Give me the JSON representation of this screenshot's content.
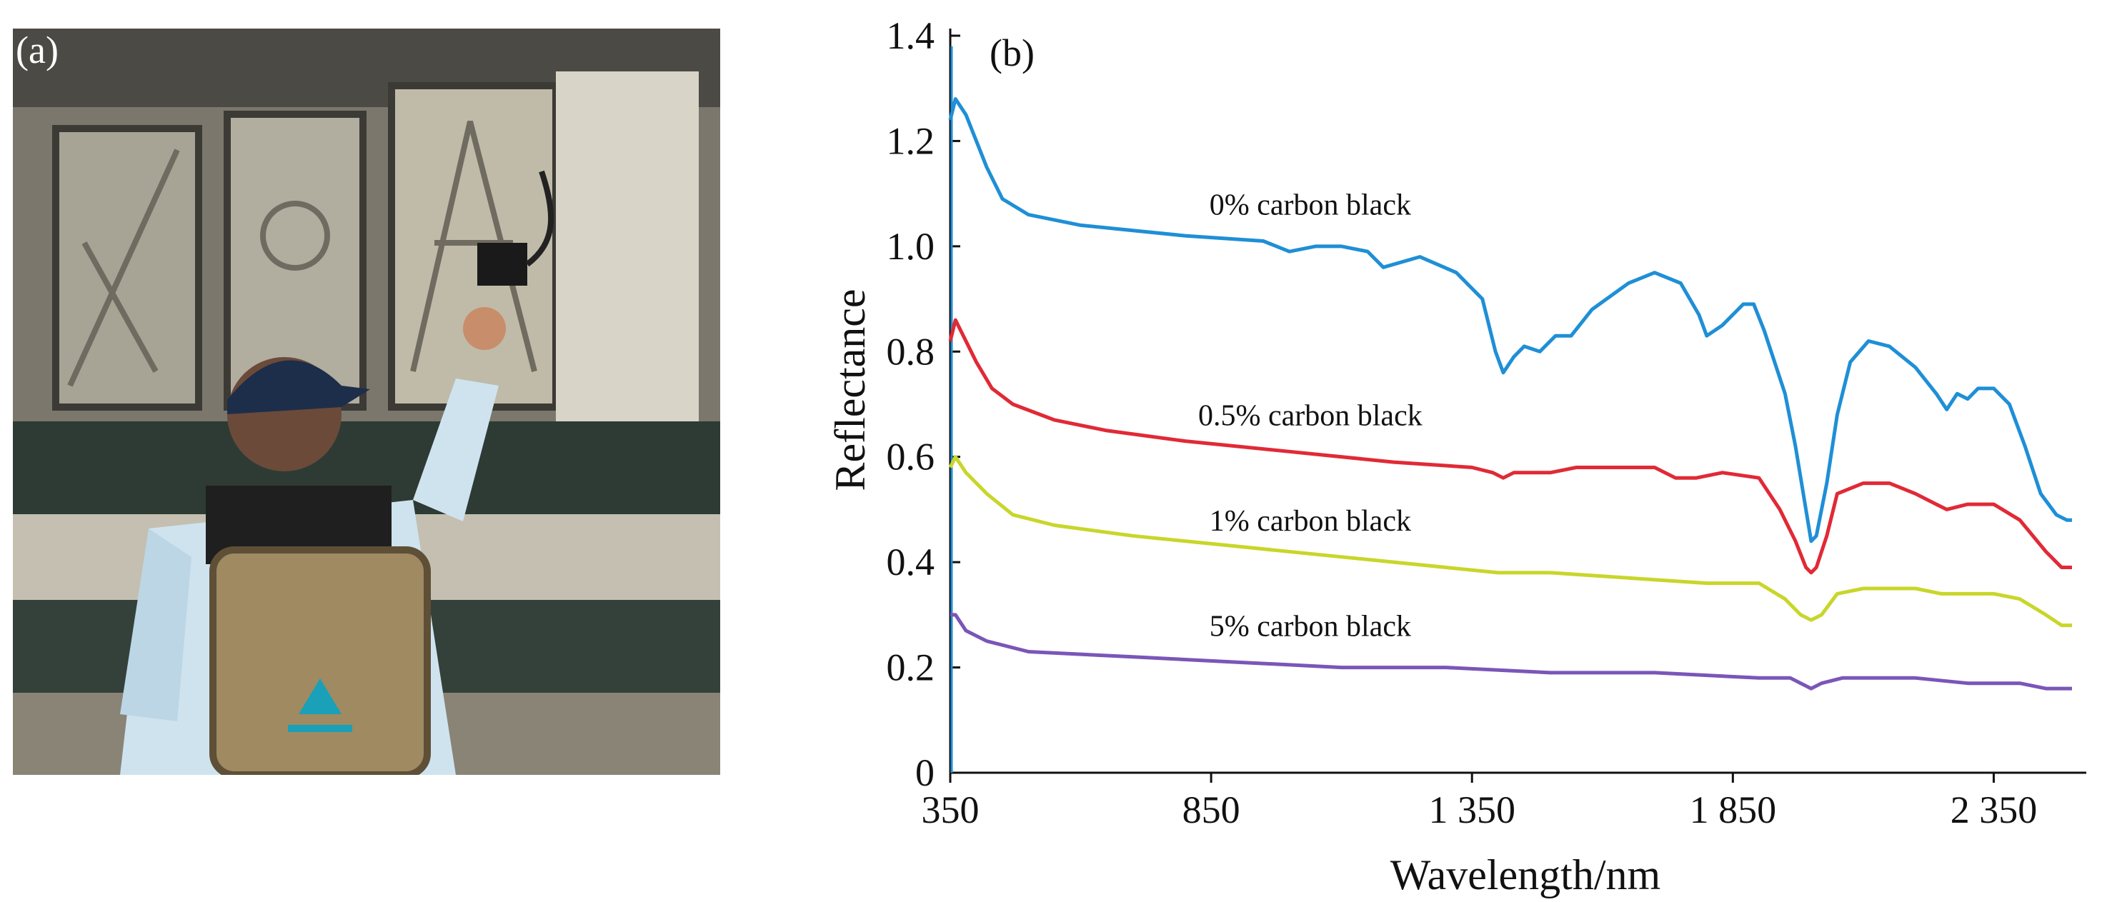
{
  "panel_a": {
    "tag": "(a)",
    "colors": {
      "wall": "#9e9a8e",
      "shadow": "#2e3a33",
      "shirt": "#cfe3ef",
      "cap": "#1d2e4a",
      "backpack": "#a08a62",
      "logo": "#1aa0b8"
    }
  },
  "chart_data": {
    "type": "line",
    "panel_tag": "(b)",
    "xlabel": "Wavelength/nm",
    "ylabel": "Reflectance",
    "xlim": [
      350,
      2500
    ],
    "ylim": [
      0,
      1.4
    ],
    "x_ticks": [
      350,
      850,
      1350,
      1850,
      2350
    ],
    "x_tick_labels": [
      "350",
      "850",
      "1 350",
      "1 850",
      "2 350"
    ],
    "y_ticks": [
      0,
      0.2,
      0.4,
      0.6,
      0.8,
      1.0,
      1.2,
      1.4
    ],
    "y_tick_labels": [
      "0",
      "0.2",
      "0.4",
      "0.6",
      "0.8",
      "1.0",
      "1.2",
      "1.4"
    ],
    "grid": false,
    "series": [
      {
        "name": "0% carbon black",
        "color": "#1f8fd6",
        "points": [
          [
            350,
            1.24
          ],
          [
            360,
            1.28
          ],
          [
            380,
            1.25
          ],
          [
            400,
            1.2
          ],
          [
            420,
            1.15
          ],
          [
            450,
            1.09
          ],
          [
            500,
            1.06
          ],
          [
            600,
            1.04
          ],
          [
            800,
            1.02
          ],
          [
            950,
            1.01
          ],
          [
            1000,
            0.99
          ],
          [
            1050,
            1.0
          ],
          [
            1100,
            1.0
          ],
          [
            1150,
            0.99
          ],
          [
            1180,
            0.96
          ],
          [
            1250,
            0.98
          ],
          [
            1320,
            0.95
          ],
          [
            1370,
            0.9
          ],
          [
            1395,
            0.8
          ],
          [
            1410,
            0.76
          ],
          [
            1430,
            0.79
          ],
          [
            1450,
            0.81
          ],
          [
            1480,
            0.8
          ],
          [
            1510,
            0.83
          ],
          [
            1540,
            0.83
          ],
          [
            1580,
            0.88
          ],
          [
            1650,
            0.93
          ],
          [
            1700,
            0.95
          ],
          [
            1750,
            0.93
          ],
          [
            1785,
            0.87
          ],
          [
            1800,
            0.83
          ],
          [
            1830,
            0.85
          ],
          [
            1870,
            0.89
          ],
          [
            1890,
            0.89
          ],
          [
            1910,
            0.84
          ],
          [
            1950,
            0.72
          ],
          [
            1970,
            0.62
          ],
          [
            1990,
            0.5
          ],
          [
            2000,
            0.44
          ],
          [
            2010,
            0.45
          ],
          [
            2030,
            0.55
          ],
          [
            2050,
            0.68
          ],
          [
            2075,
            0.78
          ],
          [
            2110,
            0.82
          ],
          [
            2150,
            0.81
          ],
          [
            2200,
            0.77
          ],
          [
            2240,
            0.72
          ],
          [
            2260,
            0.69
          ],
          [
            2280,
            0.72
          ],
          [
            2300,
            0.71
          ],
          [
            2320,
            0.73
          ],
          [
            2350,
            0.73
          ],
          [
            2380,
            0.7
          ],
          [
            2410,
            0.62
          ],
          [
            2440,
            0.53
          ],
          [
            2470,
            0.49
          ],
          [
            2490,
            0.48
          ],
          [
            2500,
            0.48
          ]
        ]
      },
      {
        "name": "0.5% carbon black",
        "color": "#e02a36",
        "points": [
          [
            350,
            0.82
          ],
          [
            360,
            0.86
          ],
          [
            380,
            0.82
          ],
          [
            400,
            0.78
          ],
          [
            430,
            0.73
          ],
          [
            470,
            0.7
          ],
          [
            550,
            0.67
          ],
          [
            650,
            0.65
          ],
          [
            800,
            0.63
          ],
          [
            1000,
            0.61
          ],
          [
            1200,
            0.59
          ],
          [
            1350,
            0.58
          ],
          [
            1390,
            0.57
          ],
          [
            1410,
            0.56
          ],
          [
            1430,
            0.57
          ],
          [
            1500,
            0.57
          ],
          [
            1550,
            0.58
          ],
          [
            1650,
            0.58
          ],
          [
            1700,
            0.58
          ],
          [
            1740,
            0.56
          ],
          [
            1780,
            0.56
          ],
          [
            1830,
            0.57
          ],
          [
            1900,
            0.56
          ],
          [
            1940,
            0.5
          ],
          [
            1970,
            0.44
          ],
          [
            1990,
            0.39
          ],
          [
            2000,
            0.38
          ],
          [
            2010,
            0.39
          ],
          [
            2030,
            0.45
          ],
          [
            2050,
            0.53
          ],
          [
            2100,
            0.55
          ],
          [
            2150,
            0.55
          ],
          [
            2200,
            0.53
          ],
          [
            2240,
            0.51
          ],
          [
            2260,
            0.5
          ],
          [
            2300,
            0.51
          ],
          [
            2350,
            0.51
          ],
          [
            2400,
            0.48
          ],
          [
            2450,
            0.42
          ],
          [
            2480,
            0.39
          ],
          [
            2500,
            0.39
          ]
        ]
      },
      {
        "name": "1% carbon black",
        "color": "#c8d62a",
        "points": [
          [
            350,
            0.58
          ],
          [
            360,
            0.6
          ],
          [
            380,
            0.57
          ],
          [
            420,
            0.53
          ],
          [
            470,
            0.49
          ],
          [
            550,
            0.47
          ],
          [
            700,
            0.45
          ],
          [
            900,
            0.43
          ],
          [
            1100,
            0.41
          ],
          [
            1300,
            0.39
          ],
          [
            1400,
            0.38
          ],
          [
            1500,
            0.38
          ],
          [
            1650,
            0.37
          ],
          [
            1800,
            0.36
          ],
          [
            1900,
            0.36
          ],
          [
            1950,
            0.33
          ],
          [
            1980,
            0.3
          ],
          [
            2000,
            0.29
          ],
          [
            2020,
            0.3
          ],
          [
            2050,
            0.34
          ],
          [
            2100,
            0.35
          ],
          [
            2200,
            0.35
          ],
          [
            2250,
            0.34
          ],
          [
            2350,
            0.34
          ],
          [
            2400,
            0.33
          ],
          [
            2450,
            0.3
          ],
          [
            2480,
            0.28
          ],
          [
            2500,
            0.28
          ]
        ]
      },
      {
        "name": "5% carbon black",
        "color": "#7a56b8",
        "points": [
          [
            350,
            0.3
          ],
          [
            360,
            0.3
          ],
          [
            380,
            0.27
          ],
          [
            420,
            0.25
          ],
          [
            500,
            0.23
          ],
          [
            700,
            0.22
          ],
          [
            900,
            0.21
          ],
          [
            1100,
            0.2
          ],
          [
            1300,
            0.2
          ],
          [
            1500,
            0.19
          ],
          [
            1700,
            0.19
          ],
          [
            1900,
            0.18
          ],
          [
            1960,
            0.18
          ],
          [
            2000,
            0.16
          ],
          [
            2020,
            0.17
          ],
          [
            2060,
            0.18
          ],
          [
            2200,
            0.18
          ],
          [
            2300,
            0.17
          ],
          [
            2400,
            0.17
          ],
          [
            2450,
            0.16
          ],
          [
            2500,
            0.16
          ]
        ]
      }
    ]
  }
}
